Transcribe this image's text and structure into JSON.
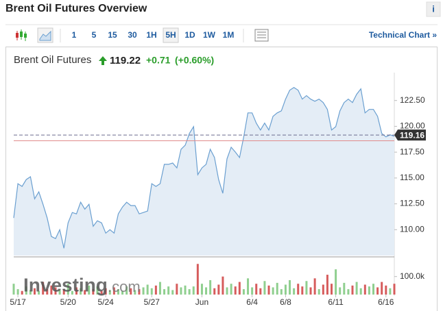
{
  "header": {
    "title": "Brent Oil Futures Overview",
    "info": "i"
  },
  "toolbar": {
    "intervals": [
      "1",
      "5",
      "15",
      "30",
      "1H",
      "5H",
      "1D",
      "1W",
      "1M"
    ],
    "technical_chart": "Technical Chart »"
  },
  "quote": {
    "name": "Brent Oil Futures",
    "price": "119.22",
    "change": "+0.71",
    "change_pct": "(+0.60%)"
  },
  "watermark": {
    "brand": "Investing",
    "suffix": ".com"
  },
  "chart_data": {
    "type": "area",
    "color": "#6a9fd0",
    "fill": "#e4edf6",
    "categories": [
      null,
      "5/17",
      null,
      null,
      null,
      null,
      null,
      null,
      null,
      null,
      null,
      null,
      null,
      "5/20",
      null,
      null,
      null,
      null,
      null,
      null,
      null,
      null,
      "5/24",
      null,
      null,
      null,
      null,
      null,
      null,
      null,
      null,
      null,
      null,
      "5/27",
      null,
      null,
      null,
      null,
      null,
      null,
      null,
      null,
      null,
      null,
      null,
      "Jun",
      null,
      null,
      null,
      null,
      null,
      null,
      null,
      null,
      null,
      null,
      null,
      "6/4",
      null,
      null,
      null,
      null,
      null,
      null,
      null,
      "6/8",
      null,
      null,
      null,
      null,
      null,
      null,
      null,
      null,
      null,
      null,
      null,
      "6/11",
      null,
      null,
      null,
      null,
      null,
      null,
      null,
      null,
      null,
      null,
      null,
      "6/16",
      null,
      null
    ],
    "values": [
      111.13,
      114.45,
      114.19,
      114.85,
      115.12,
      112.99,
      113.66,
      112.46,
      111.13,
      109.34,
      109.14,
      110.0,
      108.2,
      110.66,
      111.66,
      111.53,
      112.66,
      111.99,
      112.46,
      110.33,
      110.86,
      110.66,
      109.67,
      110.0,
      109.67,
      111.53,
      112.19,
      112.66,
      112.33,
      112.33,
      111.53,
      111.66,
      111.8,
      114.45,
      114.19,
      114.45,
      116.32,
      116.32,
      116.45,
      115.98,
      117.78,
      118.18,
      119.31,
      119.97,
      115.32,
      115.98,
      116.32,
      117.78,
      117.0,
      114.85,
      113.52,
      116.85,
      117.98,
      117.51,
      116.98,
      118.98,
      121.3,
      121.3,
      120.31,
      119.64,
      120.31,
      119.64,
      120.97,
      121.3,
      121.5,
      122.63,
      123.5,
      123.76,
      123.5,
      122.63,
      122.97,
      122.63,
      122.43,
      122.63,
      122.3,
      121.64,
      119.64,
      119.97,
      121.5,
      122.3,
      122.63,
      122.3,
      123.1,
      123.63,
      121.3,
      121.64,
      121.64,
      120.97,
      119.31,
      118.98,
      119.18,
      119.04
    ],
    "ylim": [
      107.5,
      124.8
    ],
    "yticks": [
      {
        "value": 110,
        "label": "110.00"
      },
      {
        "value": 112.5,
        "label": "112.50"
      },
      {
        "value": 115,
        "label": "115.00"
      },
      {
        "value": 117.5,
        "label": "117.50"
      },
      {
        "value": 120,
        "label": "120.00"
      },
      {
        "value": 122.5,
        "label": "122.50"
      }
    ],
    "last_price": 119.16,
    "last_color": "#6b6b8f",
    "reference_line": 118.6,
    "reference_color": "#e08a8a",
    "volume": {
      "up_color": "#8fcf8f",
      "down_color": "#d65c5c",
      "ylim": [
        0,
        190000
      ],
      "yticks": [
        {
          "value": 100000,
          "label": "100.0k"
        }
      ],
      "values": [
        60000,
        30000,
        20000,
        45000,
        25000,
        35000,
        20000,
        70000,
        30000,
        50000,
        40000,
        25000,
        30000,
        60000,
        20000,
        40000,
        35000,
        25000,
        50000,
        30000,
        45000,
        20000,
        35000,
        25000,
        40000,
        30000,
        20000,
        45000,
        35000,
        25000,
        30000,
        40000,
        55000,
        35000,
        50000,
        70000,
        30000,
        45000,
        25000,
        60000,
        40000,
        50000,
        30000,
        45000,
        170000,
        60000,
        40000,
        80000,
        35000,
        55000,
        100000,
        40000,
        60000,
        45000,
        70000,
        30000,
        90000,
        40000,
        60000,
        35000,
        75000,
        50000,
        40000,
        65000,
        30000,
        55000,
        80000,
        35000,
        60000,
        45000,
        75000,
        40000,
        90000,
        30000,
        55000,
        110000,
        60000,
        140000,
        40000,
        65000,
        30000,
        50000,
        70000,
        35000,
        55000,
        45000,
        60000,
        40000,
        70000,
        50000,
        35000,
        60000
      ]
    }
  }
}
